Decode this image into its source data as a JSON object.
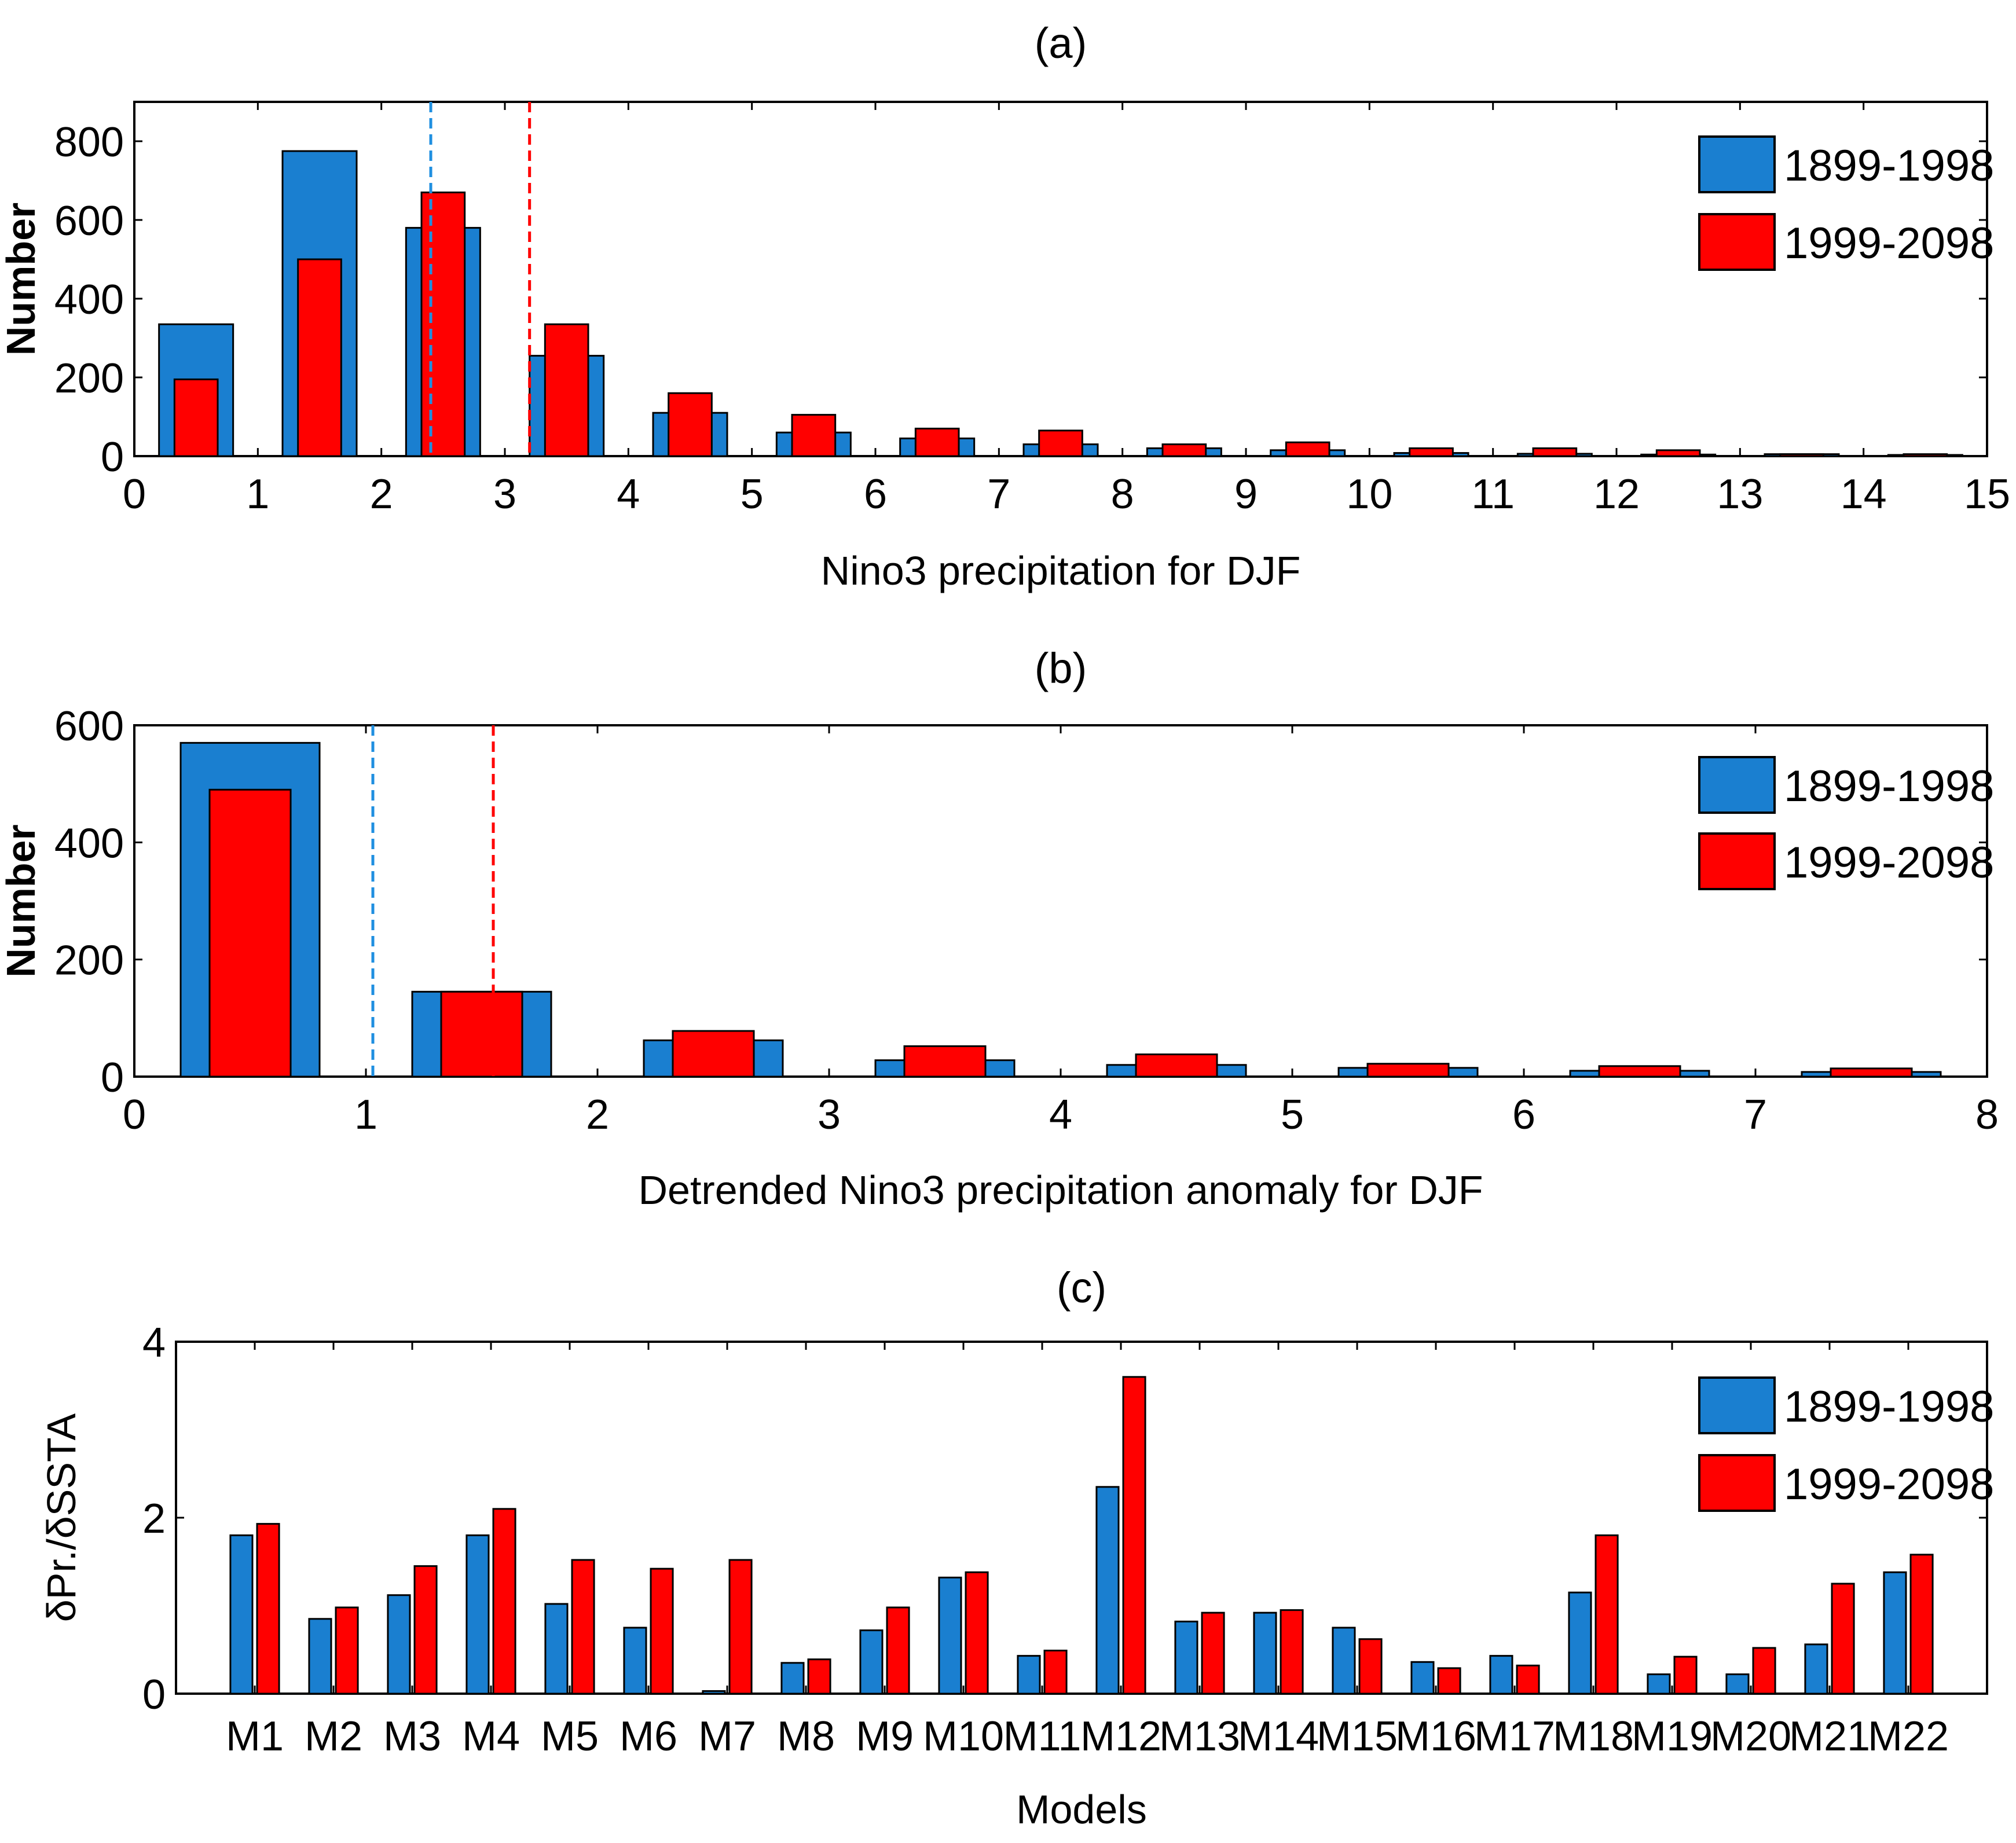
{
  "colors": {
    "blue": "#1a7fd0",
    "red": "#ff0000",
    "axis": "#000000",
    "blue_line": "#1f8fe0",
    "red_line": "#ff0000"
  },
  "chart_data": [
    {
      "id": "a",
      "type": "bar",
      "title": "(a)",
      "xlabel": "Nino3 precipitation for DJF",
      "ylabel": "Number",
      "xlim": [
        0,
        15
      ],
      "ylim": [
        0,
        900
      ],
      "xticks": [
        0,
        1,
        2,
        3,
        4,
        5,
        6,
        7,
        8,
        9,
        10,
        11,
        12,
        13,
        14,
        15
      ],
      "yticks": [
        0,
        200,
        400,
        600,
        800
      ],
      "bin_centers": [
        0.5,
        1.5,
        2.5,
        3.5,
        4.5,
        5.5,
        6.5,
        7.5,
        8.5,
        9.5,
        10.5,
        11.5,
        12.5,
        13.5,
        14.5
      ],
      "series": [
        {
          "name": "1899-1998",
          "color": "blue",
          "width": 0.6,
          "values": [
            335,
            775,
            580,
            255,
            110,
            60,
            45,
            30,
            20,
            15,
            8,
            6,
            4,
            5,
            3
          ]
        },
        {
          "name": "1999-2098",
          "color": "red",
          "width": 0.35,
          "values": [
            195,
            500,
            670,
            335,
            160,
            105,
            70,
            65,
            30,
            35,
            20,
            20,
            15,
            5,
            5
          ]
        }
      ],
      "vlines": [
        {
          "x": 2.4,
          "color": "blue_line"
        },
        {
          "x": 3.2,
          "color": "red_line"
        }
      ],
      "legend": {
        "position": "top-right",
        "entries": [
          "1899-1998",
          "1999-2098"
        ]
      }
    },
    {
      "id": "b",
      "type": "bar",
      "title": "(b)",
      "xlabel": "Detrended Nino3 precipitation anomaly for DJF",
      "ylabel": "Number",
      "xlim": [
        0,
        8
      ],
      "ylim": [
        0,
        600
      ],
      "xticks": [
        0,
        1,
        2,
        3,
        4,
        5,
        6,
        7,
        8
      ],
      "yticks": [
        0,
        200,
        400,
        600
      ],
      "bin_centers": [
        0.5,
        1.5,
        2.5,
        3.5,
        4.5,
        5.5,
        6.5,
        7.5
      ],
      "series": [
        {
          "name": "1899-1998",
          "color": "blue",
          "width": 0.6,
          "values": [
            570,
            145,
            62,
            28,
            20,
            15,
            10,
            8
          ]
        },
        {
          "name": "1999-2098",
          "color": "red",
          "width": 0.35,
          "values": [
            490,
            145,
            78,
            52,
            38,
            22,
            18,
            14
          ]
        }
      ],
      "vlines": [
        {
          "x": 1.03,
          "color": "blue_line"
        },
        {
          "x": 1.55,
          "color": "red_line"
        }
      ],
      "legend": {
        "position": "top-right",
        "entries": [
          "1899-1998",
          "1999-2098"
        ]
      }
    },
    {
      "id": "c",
      "type": "bar",
      "title": "(c)",
      "xlabel": "Models",
      "ylabel": "δPr./δSSTA",
      "ylim": [
        0,
        4
      ],
      "yticks": [
        0,
        2,
        4
      ],
      "categories": [
        "M1",
        "M2",
        "M3",
        "M4",
        "M5",
        "M6",
        "M7",
        "M8",
        "M9",
        "M10",
        "M11",
        "M12",
        "M13",
        "M14",
        "M15",
        "M16",
        "M17",
        "M18",
        "M19",
        "M20",
        "M21",
        "M22"
      ],
      "series": [
        {
          "name": "1899-1998",
          "color": "blue",
          "values": [
            1.8,
            0.85,
            1.12,
            1.8,
            1.02,
            0.75,
            0.03,
            0.35,
            0.72,
            1.32,
            0.43,
            2.35,
            0.82,
            0.92,
            0.75,
            0.36,
            0.43,
            1.15,
            0.22,
            0.22,
            0.56,
            1.38
          ]
        },
        {
          "name": "1999-2098",
          "color": "red",
          "values": [
            1.93,
            0.98,
            1.45,
            2.1,
            1.52,
            1.42,
            1.52,
            0.39,
            0.98,
            1.38,
            0.49,
            3.6,
            0.92,
            0.95,
            0.62,
            0.29,
            0.32,
            1.8,
            0.42,
            0.52,
            1.25,
            1.58
          ]
        }
      ],
      "legend": {
        "position": "top-right",
        "entries": [
          "1899-1998",
          "1999-2098"
        ]
      }
    }
  ]
}
